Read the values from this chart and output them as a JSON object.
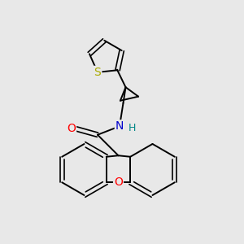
{
  "background_color": "#e8e8e8",
  "atom_colors": {
    "C": "#000000",
    "O": "#ff0000",
    "N": "#0000cc",
    "S": "#aaaa00",
    "H": "#008888"
  },
  "figsize": [
    3.0,
    3.0
  ],
  "dpi": 100
}
